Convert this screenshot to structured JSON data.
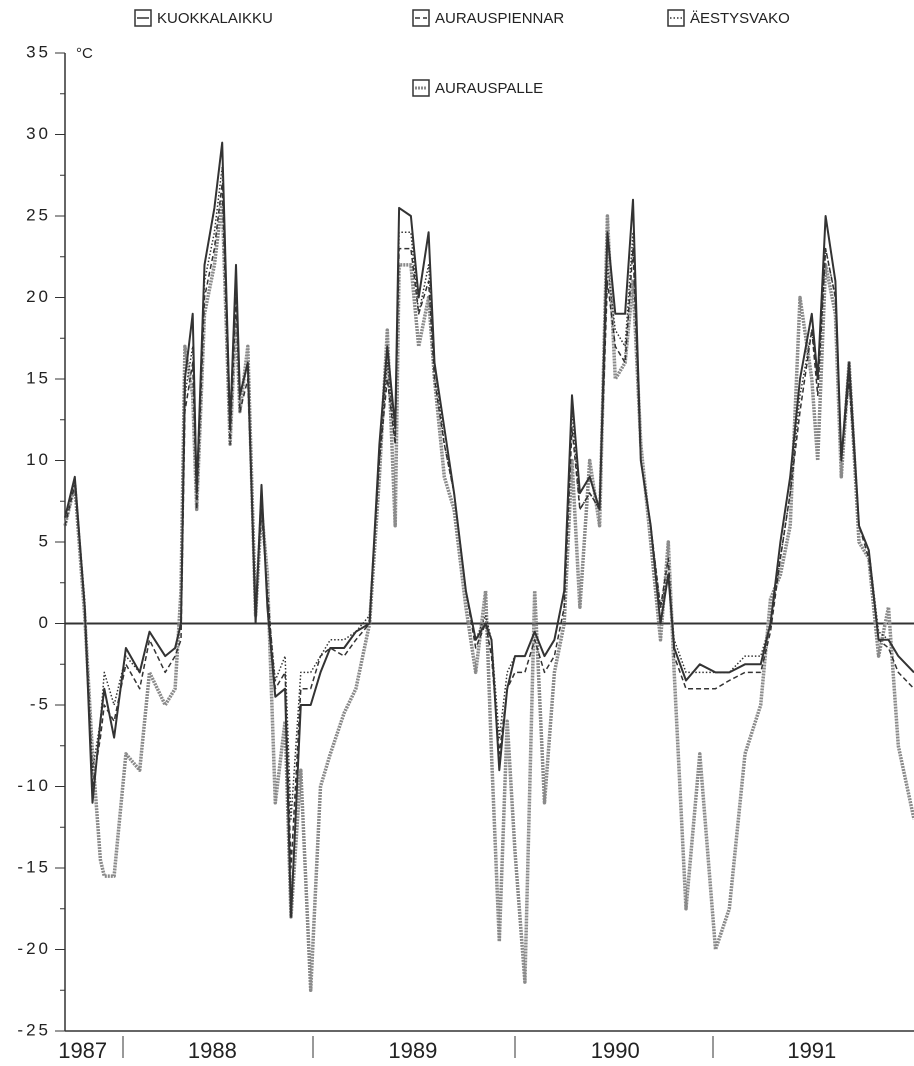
{
  "chart_data": {
    "type": "line",
    "y_unit": "°C",
    "x": [
      1987.7,
      1987.75,
      1987.8,
      1987.84,
      1987.88,
      1987.9,
      1987.95,
      1988.01,
      1988.08,
      1988.13,
      1988.21,
      1988.26,
      1988.29,
      1988.31,
      1988.35,
      1988.37,
      1988.41,
      1988.46,
      1988.5,
      1988.54,
      1988.57,
      1988.59,
      1988.63,
      1988.67,
      1988.7,
      1988.73,
      1988.77,
      1988.82,
      1988.85,
      1988.9,
      1988.95,
      1989.0,
      1989.05,
      1989.12,
      1989.18,
      1989.25,
      1989.3,
      1989.34,
      1989.38,
      1989.4,
      1989.46,
      1989.5,
      1989.55,
      1989.58,
      1989.63,
      1989.68,
      1989.74,
      1989.79,
      1989.84,
      1989.87,
      1989.91,
      1989.95,
      1989.99,
      1990.04,
      1990.09,
      1990.14,
      1990.19,
      1990.24,
      1990.28,
      1990.32,
      1990.37,
      1990.42,
      1990.46,
      1990.5,
      1990.55,
      1990.59,
      1990.63,
      1990.68,
      1990.73,
      1990.77,
      1990.8,
      1990.86,
      1990.93,
      1991.01,
      1991.08,
      1991.16,
      1991.24,
      1991.29,
      1991.34,
      1991.39,
      1991.44,
      1991.5,
      1991.53,
      1991.57,
      1991.62,
      1991.65,
      1991.69,
      1991.74,
      1991.79,
      1991.84,
      1991.89,
      1991.94,
      1992.02
    ],
    "series": [
      {
        "name": "KUOKKALAIKKU",
        "color": "#333333",
        "style": "solid",
        "values": [
          6.5,
          9,
          1,
          -11,
          -6,
          -4,
          -7,
          -1.5,
          -3,
          -0.5,
          -2,
          -1.5,
          0,
          15,
          19,
          8,
          22,
          25.5,
          29.5,
          12,
          22,
          14,
          16,
          0,
          8.5,
          1,
          -4.5,
          -4,
          -18,
          -5,
          -5,
          -3,
          -1.5,
          -1.5,
          -0.5,
          0,
          11,
          17,
          12,
          25.5,
          25,
          20,
          24,
          16,
          12,
          8,
          2,
          -1,
          0,
          -1,
          -9,
          -4,
          -2,
          -2,
          -0.5,
          -2,
          -1,
          2,
          14,
          8,
          9,
          7,
          24,
          19,
          19,
          26,
          10,
          6,
          0,
          3,
          -1.5,
          -3.5,
          -2.5,
          -3,
          -3,
          -2.5,
          -2.5,
          0,
          5,
          9,
          15,
          19,
          15,
          25,
          21,
          10,
          16,
          6,
          4.5,
          -1,
          -1,
          -2,
          -3
        ]
      },
      {
        "name": "AURAUSPIENNAR",
        "color": "#333333",
        "style": "dashed",
        "values": [
          6,
          8.5,
          1,
          -10,
          -7,
          -5,
          -6,
          -2.5,
          -4,
          -1,
          -3,
          -2,
          -1,
          13,
          16,
          7,
          20,
          23,
          27,
          11,
          20,
          13,
          15,
          1,
          7,
          2,
          -4,
          -3,
          -15,
          -4,
          -4,
          -2,
          -1.5,
          -2,
          -1,
          0,
          10,
          15,
          11,
          23,
          23,
          19,
          21,
          15,
          11,
          8,
          2,
          -1.5,
          0,
          -2,
          -8,
          -4,
          -3,
          -3,
          -1,
          -3,
          -2,
          1,
          12,
          7,
          8,
          7,
          21,
          17,
          16,
          23,
          10,
          6,
          1,
          4,
          -2,
          -4,
          -4,
          -4,
          -3.5,
          -3,
          -3,
          -0.5,
          4,
          8,
          13,
          18,
          14,
          23,
          20,
          10,
          15,
          6,
          4,
          -1,
          -1.5,
          -3,
          -4
        ]
      },
      {
        "name": "ÄESTYSVAKO",
        "color": "#333333",
        "style": "dotted",
        "values": [
          6.5,
          8.8,
          1.5,
          -9,
          -6,
          -3,
          -5,
          -2,
          -3,
          -0.5,
          -2,
          -1.5,
          0,
          14,
          17,
          8,
          21,
          24,
          28,
          12,
          21,
          14,
          16,
          0.5,
          8,
          1.5,
          -3.5,
          -2,
          -12,
          -3,
          -3,
          -2,
          -1,
          -1,
          -0.5,
          0.5,
          10,
          16,
          11,
          24,
          24,
          19,
          22,
          16,
          11,
          8,
          2,
          -1,
          0.5,
          -1,
          -7,
          -3,
          -2,
          -2,
          -0.5,
          -2,
          -1,
          2,
          13,
          7,
          8,
          7,
          22,
          18,
          17,
          24,
          10,
          6,
          1,
          3,
          -1,
          -3,
          -3,
          -3,
          -3,
          -2,
          -2,
          0,
          4,
          8,
          14,
          18,
          15,
          23,
          20,
          10,
          15,
          6,
          4.5,
          -0.5,
          -1,
          -2,
          -3
        ]
      },
      {
        "name": "AURAUSPALLE",
        "color": "#8a8a8a",
        "style": "double",
        "values": [
          6,
          8.5,
          0.5,
          -8,
          -14.5,
          -15.5,
          -15.5,
          -8,
          -9,
          -3,
          -5,
          -4,
          2,
          17,
          14,
          7,
          19,
          22,
          26,
          11,
          19,
          13,
          17,
          0.5,
          7,
          3,
          -11,
          -6,
          -18,
          -9,
          -22.5,
          -10,
          -8,
          -5.5,
          -4,
          0,
          9,
          18,
          6,
          22,
          22,
          17,
          20,
          15,
          9,
          7,
          1,
          -3,
          2,
          -8,
          -19.5,
          -6,
          -14,
          -22,
          2,
          -11,
          -3,
          0,
          10,
          1,
          10,
          6,
          25,
          15,
          16,
          21,
          11,
          5,
          -1,
          5,
          -3,
          -17.5,
          -8,
          -20,
          -17.5,
          -8,
          -5,
          1.5,
          3,
          6,
          20,
          15,
          10,
          22,
          19,
          9,
          16,
          5,
          4,
          -2,
          1,
          -7.5,
          -12
        ]
      }
    ],
    "xlim": [
      1987.7,
      1992.02
    ],
    "xticks": [
      {
        "value": 1987.79,
        "label": "1987"
      },
      {
        "value": 1988.45,
        "label": "1988"
      },
      {
        "value": 1989.47,
        "label": "1989"
      },
      {
        "value": 1990.5,
        "label": "1990"
      },
      {
        "value": 1991.5,
        "label": "1991"
      }
    ],
    "ylim": [
      -25,
      35
    ],
    "yticks": [
      -25,
      -20,
      -15,
      -10,
      -5,
      0,
      5,
      10,
      15,
      20,
      25,
      30,
      35
    ],
    "zero_line": true
  }
}
